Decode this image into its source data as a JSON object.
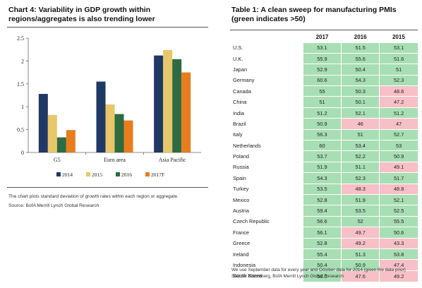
{
  "chart4": {
    "title": "Chart 4: Variability in GDP growth within regions/aggregates is also trending lower",
    "footnote": "The chart plots standard deviation of growth rates within each region or aggregate.",
    "source": "Source: BofA Merrill Lynch Global Research",
    "colors": {
      "2014": "#1f3864",
      "2015": "#e8c76a",
      "2016": "#2e6b40",
      "2017F": "#e87d1e"
    }
  },
  "chart_data": {
    "type": "bar",
    "categories": [
      "G5",
      "Euro area",
      "Asia Pacific"
    ],
    "series": [
      {
        "name": "2014",
        "values": [
          1.28,
          1.55,
          2.12
        ]
      },
      {
        "name": "2015",
        "values": [
          0.82,
          1.05,
          2.24
        ]
      },
      {
        "name": "2016",
        "values": [
          0.33,
          0.84,
          2.04
        ]
      },
      {
        "name": "2017F",
        "values": [
          0.49,
          0.7,
          1.75
        ]
      }
    ],
    "yticks": [
      "0",
      "0.5",
      "1",
      "1.5",
      "2",
      "2.5"
    ],
    "ylim": [
      0,
      2.5
    ],
    "legend": "bottom",
    "grid": false
  },
  "table1": {
    "title": "Table 1: A clean sweep for manufacturing PMIs (green indicates >50)",
    "columns": [
      "2017",
      "2016",
      "2015"
    ],
    "rows": [
      {
        "country": "U.S.",
        "values": [
          "53.1",
          "51.5",
          "53.1"
        ]
      },
      {
        "country": "U.K.",
        "values": [
          "55.9",
          "55.6",
          "51.6"
        ]
      },
      {
        "country": "Japan",
        "values": [
          "52.9",
          "50.4",
          "51"
        ]
      },
      {
        "country": "Germany",
        "values": [
          "60.6",
          "54.3",
          "52.3"
        ]
      },
      {
        "country": "Canada",
        "values": [
          "55",
          "50.3",
          "48.6"
        ]
      },
      {
        "country": "China",
        "values": [
          "51",
          "50.1",
          "47.2"
        ]
      },
      {
        "country": "India",
        "values": [
          "51.2",
          "52.1",
          "51.2"
        ]
      },
      {
        "country": "Brazil",
        "values": [
          "50.9",
          "46",
          "47"
        ]
      },
      {
        "country": "Italy",
        "values": [
          "56.3",
          "51",
          "52.7"
        ]
      },
      {
        "country": "Netherlands",
        "values": [
          "60",
          "53.4",
          "53"
        ]
      },
      {
        "country": "Poland",
        "values": [
          "53.7",
          "52.2",
          "50.9"
        ]
      },
      {
        "country": "Russia",
        "values": [
          "51.9",
          "51.1",
          "49.1"
        ]
      },
      {
        "country": "Spain",
        "values": [
          "54.3",
          "52.3",
          "51.7"
        ]
      },
      {
        "country": "Turkey",
        "values": [
          "53.5",
          "48.3",
          "48.8"
        ]
      },
      {
        "country": "Mexico",
        "values": [
          "52.8",
          "51.9",
          "52.1"
        ]
      },
      {
        "country": "Austria",
        "values": [
          "59.4",
          "53.5",
          "52.5"
        ]
      },
      {
        "country": "Czech Republic",
        "values": [
          "56.6",
          "52",
          "55.5"
        ]
      },
      {
        "country": "France",
        "values": [
          "56.1",
          "49.7",
          "50.6"
        ]
      },
      {
        "country": "Greece",
        "values": [
          "52.8",
          "49.2",
          "43.3"
        ]
      },
      {
        "country": "Ireland",
        "values": [
          "55.4",
          "51.3",
          "53.8"
        ]
      },
      {
        "country": "Indonesia",
        "values": [
          "50.4",
          "50.9",
          "47.4"
        ]
      },
      {
        "country": "South Korea",
        "values": [
          "50.6",
          "47.6",
          "49.2"
        ]
      }
    ],
    "note": "We use September data for every year and October data for 2014 (given the data prior) Source: Bloomberg, BofA Merrill Lynch Global Research",
    "colors": {
      "above_50": "#a8deb4",
      "below_50": "#f6c0c6"
    }
  }
}
